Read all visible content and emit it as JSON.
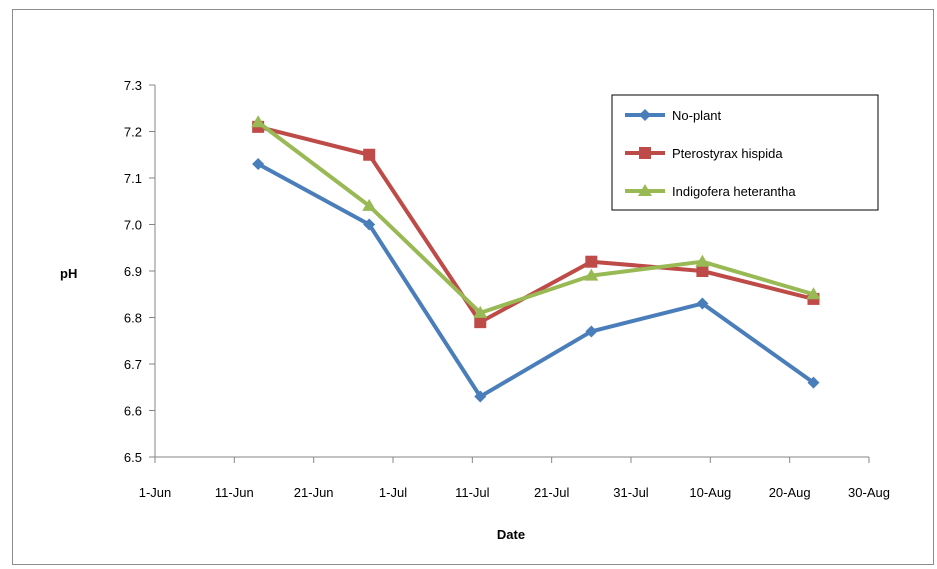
{
  "chart_data": {
    "type": "line",
    "xlabel": "Date",
    "ylabel": "pH",
    "ylim": [
      6.5,
      7.3
    ],
    "ystep": 0.1,
    "x_ticks": [
      "1-Jun",
      "11-Jun",
      "21-Jun",
      "1-Jul",
      "11-Jul",
      "21-Jul",
      "31-Jul",
      "10-Aug",
      "20-Aug",
      "30-Aug"
    ],
    "x_range": [
      "1-Jun",
      "30-Aug"
    ],
    "x": [
      "14-Jun",
      "28-Jun",
      "12-Jul",
      "26-Jul",
      "9-Aug",
      "23-Aug"
    ],
    "series": [
      {
        "name": "No-plant",
        "marker": "diamond",
        "color": "#4a7ebb",
        "values": [
          7.13,
          7.0,
          6.63,
          6.77,
          6.83,
          6.66
        ]
      },
      {
        "name": "Pterostyrax hispida",
        "marker": "square",
        "color": "#be4b48",
        "values": [
          7.21,
          7.15,
          6.79,
          6.92,
          6.9,
          6.84
        ]
      },
      {
        "name": "Indigofera heterantha",
        "marker": "triangle",
        "color": "#98b954",
        "values": [
          7.22,
          7.04,
          6.81,
          6.89,
          6.92,
          6.85
        ]
      }
    ],
    "legend_position": "top-right",
    "grid": false
  }
}
